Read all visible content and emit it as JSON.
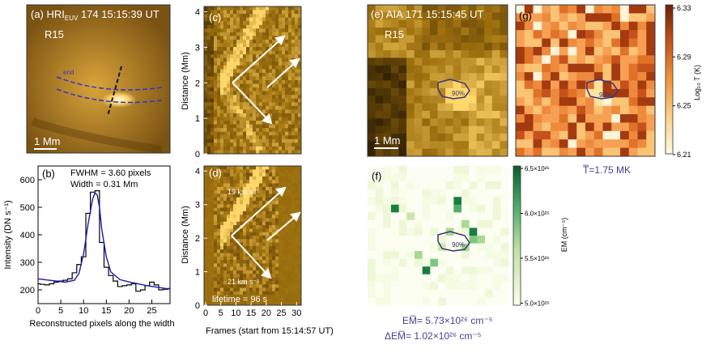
{
  "panel_a": {
    "label": "(a) HRI",
    "sub": "EUV",
    "title_rest": " 174   15:15:39 UT",
    "region": "R15",
    "scale": "1 Mm",
    "end_label": "end"
  },
  "panel_b": {
    "label": "(b)",
    "fwhm": "FWHM =  3.60 pixels",
    "width": "Width = 0.31 Mm",
    "ylabel": "Intensity (DN s⁻¹)",
    "xlabel": "Reconstructed pixels along the width",
    "xticks": [
      "0",
      "5",
      "10",
      "15",
      "20",
      "25"
    ],
    "yticks": [
      "200",
      "300",
      "400",
      "500",
      "600"
    ],
    "chart_data": {
      "type": "line",
      "xlim": [
        0,
        29
      ],
      "ylim": [
        150,
        650
      ],
      "series": [
        {
          "values_x": [
            0,
            1,
            2,
            3,
            4,
            5,
            6,
            7,
            8,
            9,
            10,
            11,
            12,
            13,
            14,
            15,
            16,
            17,
            18,
            19,
            20,
            21,
            22,
            23,
            24,
            25,
            26,
            27,
            28,
            29
          ],
          "values_y": [
            222,
            220,
            218,
            222,
            228,
            232,
            235,
            240,
            262,
            292,
            320,
            478,
            555,
            560,
            372,
            282,
            252,
            232,
            212,
            215,
            218,
            222,
            195,
            200,
            215,
            228,
            218,
            200,
            202,
            205
          ],
          "style": "step",
          "color": "#000000"
        },
        {
          "values_x": [
            0,
            2,
            4,
            6,
            8,
            9,
            10,
            11,
            12,
            12.5,
            13,
            13.5,
            14,
            15,
            16,
            18,
            20,
            22,
            24,
            26,
            28,
            29
          ],
          "values_y": [
            240,
            236,
            232,
            228,
            235,
            260,
            330,
            440,
            530,
            552,
            545,
            500,
            420,
            320,
            265,
            237,
            229,
            222,
            215,
            210,
            205,
            203
          ],
          "style": "smooth",
          "color": "#1a1aa8"
        }
      ]
    }
  },
  "panel_c": {
    "label": "(c)",
    "ylabel": "Distance (Mm)",
    "yticks": [
      "0",
      "1",
      "2",
      "3",
      "4"
    ]
  },
  "panel_d": {
    "label": "(d)",
    "ylabel": "Distance (Mm)",
    "xlabel": "Frames (start from 15:14:57 UT)",
    "yticks": [
      "0",
      "1",
      "2",
      "3",
      "4"
    ],
    "xticks": [
      "0",
      "5",
      "10",
      "15",
      "20",
      "25",
      "30"
    ],
    "speed1": "19 km s⁻¹",
    "speed2": "21 km s⁻¹",
    "speed3": "21 km s⁻¹",
    "lifetime": "lifetime =  96 s"
  },
  "panel_e": {
    "label": "(e) AIA 171   15:15:45 UT",
    "region": "R15",
    "scale": "1 Mm",
    "contour": "90%"
  },
  "panel_f": {
    "label": "(f)",
    "contour": "90%",
    "cbar_label": "EM (cm⁻⁵)",
    "cbar_ticks": [
      "6.5×10²⁶",
      "6.0×10²⁶",
      "5.5×10²⁶",
      "5.0×10²⁶"
    ],
    "em_mean": "EM̅= 5.73×10²⁶ cm⁻⁵",
    "em_delta": "ΔEM̅= 1.02×10²⁶ cm⁻⁵"
  },
  "panel_g": {
    "label": "(g)",
    "contour": "90%",
    "cbar_label": "Log₁₀ T (K)",
    "cbar_ticks": [
      "6.33",
      "6.29",
      "6.25",
      "6.21"
    ],
    "t_mean": "T̅=1.75 MK"
  },
  "colors": {
    "accent": "#4a3d8f",
    "arrow": "#ffffff",
    "contour": "#3a3480"
  }
}
